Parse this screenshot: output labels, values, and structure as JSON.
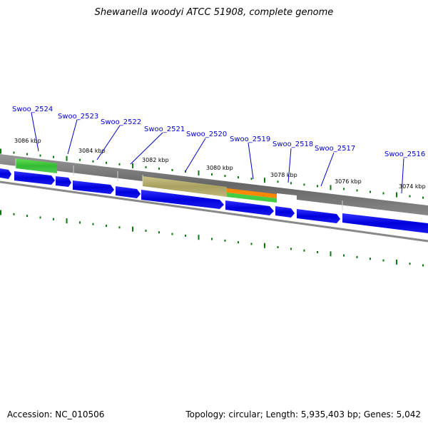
{
  "title": "Shewanella woodyi ATCC 51908, complete genome",
  "footer": {
    "accession": "Accession: NC_010506",
    "summary": "Topology: circular; Length: 5,935,403 bp; Genes: 5,042"
  },
  "colors": {
    "gene_label": "#0000cc",
    "cds_blue": "#0000ee",
    "gray_feature": "#707070",
    "green_feature": "#44cc44",
    "olive_feature": "#b8b070",
    "orange_feature": "#ff8800",
    "tick_green": "#117711",
    "backbone": "#888888"
  },
  "kbp_ticks": [
    "3086 kbp",
    "3084 kbp",
    "3082 kbp",
    "3080 kbp",
    "3078 kbp",
    "3076 kbp",
    "3074 kbp"
  ],
  "genes": [
    "Swoo_2524",
    "Swoo_2523",
    "Swoo_2522",
    "Swoo_2521",
    "Swoo_2520",
    "Swoo_2519",
    "Swoo_2518",
    "Swoo_2517",
    "Swoo_2516"
  ]
}
